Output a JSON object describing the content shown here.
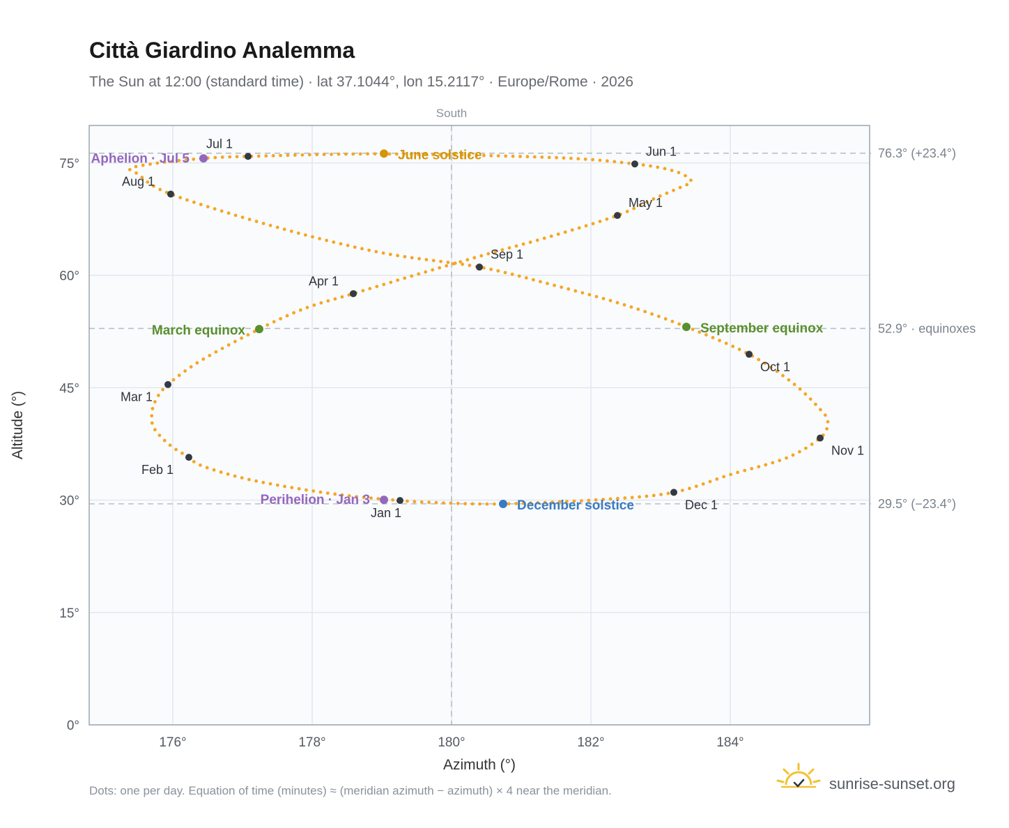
{
  "header": {
    "title": "Città Giardino Analemma",
    "subtitle": "The Sun at 12:00 (standard time) · lat 37.1044°, lon 15.2117° · Europe/Rome · 2026"
  },
  "footer": {
    "note": "Dots: one per day. Equation of time (minutes) ≈ (meridian azimuth − azimuth) × 4 near the meridian.",
    "brand": "sunrise-sunset.org"
  },
  "colors": {
    "curve": "#f5a623",
    "month_marker": "#343a43",
    "equinox": "#5a8f2e",
    "june_solstice": "#d4950a",
    "december_solstice": "#3a7bc0",
    "apsis": "#9467bd",
    "plot_bg": "#f9fbfd",
    "grid": "#e3e8ee",
    "frame": "#9aa5b1",
    "reference_line": "#b8c0c8"
  },
  "chart_data": {
    "type": "scatter",
    "title": "Città Giardino Analemma",
    "xlabel": "Azimuth (°)",
    "ylabel": "Altitude (°)",
    "xlim": [
      174.8,
      186.0
    ],
    "ylim": [
      0,
      80
    ],
    "x_ticks": [
      176,
      178,
      180,
      182,
      184
    ],
    "x_tick_labels": [
      "176°",
      "178°",
      "180°",
      "182°",
      "184°"
    ],
    "y_ticks": [
      0,
      15,
      30,
      45,
      60,
      75
    ],
    "y_tick_labels": [
      "0°",
      "15°",
      "30°",
      "45°",
      "60°",
      "75°"
    ],
    "grid": true,
    "meridian": {
      "azimuth": 180,
      "label": "South"
    },
    "reference_lines": [
      {
        "altitude": 76.3,
        "label": "76.3° (+23.4°)"
      },
      {
        "altitude": 52.9,
        "label": "52.9° · equinoxes"
      },
      {
        "altitude": 29.5,
        "label": "29.5° (−23.4°)"
      }
    ],
    "curve_points_azimuth_altitude": [
      [
        179.26,
        29.94
      ],
      [
        178.5,
        30.6
      ],
      [
        177.75,
        31.6
      ],
      [
        177.02,
        32.9
      ],
      [
        176.41,
        34.6
      ],
      [
        176.23,
        35.71
      ],
      [
        175.95,
        37.4
      ],
      [
        175.73,
        39.6
      ],
      [
        175.7,
        41.6
      ],
      [
        175.76,
        43.4
      ],
      [
        175.93,
        45.42
      ],
      [
        176.4,
        48.6
      ],
      [
        177.24,
        52.82
      ],
      [
        177.9,
        55.6
      ],
      [
        178.59,
        57.55
      ],
      [
        179.5,
        60.1
      ],
      [
        180.5,
        62.8
      ],
      [
        181.5,
        65.4
      ],
      [
        182.38,
        67.99
      ],
      [
        182.9,
        70.2
      ],
      [
        183.3,
        71.8
      ],
      [
        183.44,
        72.6
      ],
      [
        183.2,
        73.9
      ],
      [
        182.63,
        74.86
      ],
      [
        181.5,
        75.7
      ],
      [
        179.0,
        76.2
      ],
      [
        177.08,
        75.87
      ],
      [
        176.44,
        75.6
      ],
      [
        175.8,
        75.0
      ],
      [
        175.4,
        74.3
      ],
      [
        175.5,
        73.5
      ],
      [
        175.97,
        70.84
      ],
      [
        177.5,
        66.4
      ],
      [
        179.0,
        63.0
      ],
      [
        180.4,
        61.1
      ],
      [
        181.5,
        58.6
      ],
      [
        182.5,
        56.0
      ],
      [
        183.37,
        53.12
      ],
      [
        184.27,
        49.46
      ],
      [
        184.9,
        45.6
      ],
      [
        185.3,
        42.0
      ],
      [
        185.4,
        40.4
      ],
      [
        185.29,
        38.28
      ],
      [
        184.8,
        35.6
      ],
      [
        184.0,
        33.4
      ],
      [
        183.19,
        31.03
      ],
      [
        182.2,
        30.1
      ],
      [
        180.74,
        29.49
      ],
      [
        179.8,
        29.65
      ],
      [
        179.26,
        29.94
      ]
    ],
    "month_markers": [
      {
        "label": "Jan 1",
        "azimuth": 179.26,
        "altitude": 29.94
      },
      {
        "label": "Feb 1",
        "azimuth": 176.23,
        "altitude": 35.71
      },
      {
        "label": "Mar 1",
        "azimuth": 175.93,
        "altitude": 45.42
      },
      {
        "label": "Apr 1",
        "azimuth": 178.59,
        "altitude": 57.55
      },
      {
        "label": "May 1",
        "azimuth": 182.38,
        "altitude": 67.99
      },
      {
        "label": "Jun 1",
        "azimuth": 182.63,
        "altitude": 74.86
      },
      {
        "label": "Jul 1",
        "azimuth": 177.08,
        "altitude": 75.87
      },
      {
        "label": "Aug 1",
        "azimuth": 175.97,
        "altitude": 70.84
      },
      {
        "label": "Sep 1",
        "azimuth": 180.4,
        "altitude": 61.1
      },
      {
        "label": "Oct 1",
        "azimuth": 184.27,
        "altitude": 49.46
      },
      {
        "label": "Nov 1",
        "azimuth": 185.29,
        "altitude": 38.28
      },
      {
        "label": "Dec 1",
        "azimuth": 183.19,
        "altitude": 31.03
      }
    ],
    "events": [
      {
        "label": "March equinox",
        "azimuth": 177.24,
        "altitude": 52.82,
        "kind": "equinox"
      },
      {
        "label": "June solstice",
        "azimuth": 179.03,
        "altitude": 76.25,
        "kind": "june_solstice"
      },
      {
        "label": "September equinox",
        "azimuth": 183.37,
        "altitude": 53.12,
        "kind": "equinox"
      },
      {
        "label": "December solstice",
        "azimuth": 180.74,
        "altitude": 29.49,
        "kind": "december_solstice"
      },
      {
        "label": "Perihelion · Jan 3",
        "azimuth": 179.03,
        "altitude": 30.04,
        "kind": "apsis"
      },
      {
        "label": "Aphelion · Jul 5",
        "azimuth": 176.44,
        "altitude": 75.6,
        "kind": "apsis"
      }
    ]
  }
}
